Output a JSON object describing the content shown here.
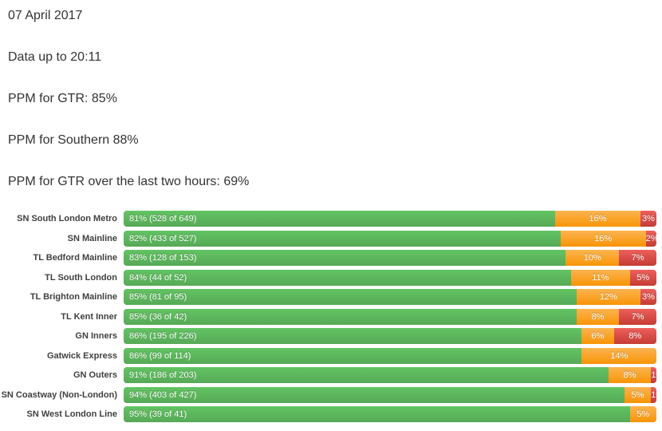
{
  "header": {
    "lines": [
      "07 April 2017",
      "Data up to 20:11",
      "PPM for GTR: 85%",
      "PPM for Southern 88%",
      "PPM for GTR over the last two hours: 69%"
    ]
  },
  "chart_data": {
    "type": "bar",
    "orientation": "horizontal",
    "stacked": true,
    "unit": "percent",
    "xlim": [
      0,
      100
    ],
    "legend": "none",
    "grid": false,
    "colors": {
      "on_time": "#5bb75b",
      "late": "#faa732",
      "cancelled_or_very_late": "#da4f49"
    },
    "series_names": [
      "on_time_pct",
      "late_pct",
      "very_late_pct"
    ],
    "rows": [
      {
        "label": "SN South London Metro",
        "green_pct": 81,
        "green_label": "81% (528 of 649)",
        "orange_pct": 16,
        "orange_label": "16%",
        "red_pct": 3,
        "red_label": "3%"
      },
      {
        "label": "SN Mainline",
        "green_pct": 82,
        "green_label": "82% (433 of 527)",
        "orange_pct": 16,
        "orange_label": "16%",
        "red_pct": 2,
        "red_label": "2%"
      },
      {
        "label": "TL Bedford Mainline",
        "green_pct": 83,
        "green_label": "83% (128 of 153)",
        "orange_pct": 10,
        "orange_label": "10%",
        "red_pct": 7,
        "red_label": "7%"
      },
      {
        "label": "TL South London",
        "green_pct": 84,
        "green_label": "84% (44 of 52)",
        "orange_pct": 11,
        "orange_label": "11%",
        "red_pct": 5,
        "red_label": "5%"
      },
      {
        "label": "TL Brighton Mainline",
        "green_pct": 85,
        "green_label": "85% (81 of 95)",
        "orange_pct": 12,
        "orange_label": "12%",
        "red_pct": 3,
        "red_label": "3%"
      },
      {
        "label": "TL Kent Inner",
        "green_pct": 85,
        "green_label": "85% (36 of 42)",
        "orange_pct": 8,
        "orange_label": "8%",
        "red_pct": 7,
        "red_label": "7%"
      },
      {
        "label": "GN Inners",
        "green_pct": 86,
        "green_label": "86% (195 of 226)",
        "orange_pct": 6,
        "orange_label": "6%",
        "red_pct": 8,
        "red_label": "8%"
      },
      {
        "label": "Gatwick Express",
        "green_pct": 86,
        "green_label": "86% (99 of 114)",
        "orange_pct": 14,
        "orange_label": "14%",
        "red_pct": 0,
        "red_label": ""
      },
      {
        "label": "GN Outers",
        "green_pct": 91,
        "green_label": "91% (186 of 203)",
        "orange_pct": 8,
        "orange_label": "8%",
        "red_pct": 1,
        "red_label": "1%"
      },
      {
        "label": "SN Coastway (Non-London)",
        "green_pct": 94,
        "green_label": "94% (403 of 427)",
        "orange_pct": 5,
        "orange_label": "5%",
        "red_pct": 1,
        "red_label": "1%"
      },
      {
        "label": "SN West London Line",
        "green_pct": 95,
        "green_label": "95% (39 of 41)",
        "orange_pct": 5,
        "orange_label": "5%",
        "red_pct": 0,
        "red_label": ""
      }
    ]
  }
}
